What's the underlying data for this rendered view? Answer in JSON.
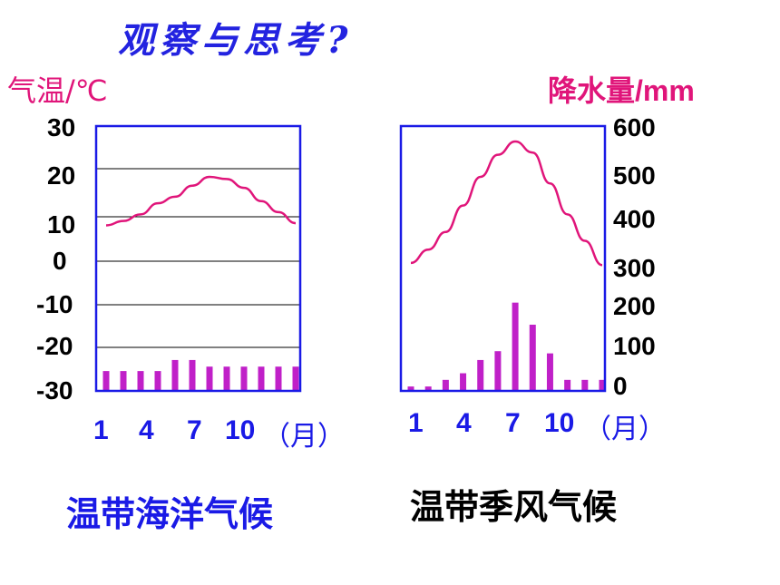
{
  "title": "观察与思考?",
  "temp_axis_label": "气温/℃",
  "precip_axis_label": "降水量/mm",
  "left_y_ticks": [
    "30",
    "20",
    "10",
    "0",
    "-10",
    "-20",
    "-30"
  ],
  "right_y_ticks": [
    "600",
    "500",
    "400",
    "300",
    "200",
    "100",
    "0"
  ],
  "month_suffix": "（月）",
  "colors": {
    "temperature": "#e0157a",
    "precipitation": "#c020c8",
    "frame": "#1a1ae6",
    "month_labels": "#1a1ae6"
  },
  "chart_data": [
    {
      "type": "bar",
      "caption": "温带海洋气候",
      "x": [
        "1",
        "2",
        "3",
        "4",
        "5",
        "6",
        "7",
        "8",
        "9",
        "10",
        "11",
        "12"
      ],
      "x_tick_labels": [
        "1",
        "4",
        "7",
        "10"
      ],
      "temperature_c": [
        7.5,
        8.5,
        10,
        12.5,
        14,
        16.5,
        18.5,
        18,
        16,
        13,
        10.5,
        8
      ],
      "precipitation_mm": [
        45,
        45,
        45,
        45,
        70,
        70,
        55,
        55,
        55,
        55,
        55,
        55
      ],
      "temp_ylim": [
        -30,
        30
      ],
      "precip_ylim": [
        0,
        600
      ],
      "ylabel_left": "气温/℃"
    },
    {
      "type": "bar",
      "caption": "温带季风气候",
      "x": [
        "1",
        "2",
        "3",
        "4",
        "5",
        "6",
        "7",
        "8",
        "9",
        "10",
        "11",
        "12"
      ],
      "x_tick_labels": [
        "1",
        "4",
        "7",
        "10"
      ],
      "temperature_c": [
        -1,
        2,
        6,
        12,
        18.5,
        23.5,
        26.5,
        24,
        17,
        10,
        4,
        -1.5
      ],
      "precipitation_mm": [
        10,
        10,
        25,
        40,
        70,
        90,
        200,
        150,
        85,
        25,
        25,
        25
      ],
      "temp_ylim": [
        -30,
        30
      ],
      "precip_ylim": [
        0,
        600
      ],
      "ylabel_right": "降水量/mm"
    }
  ]
}
